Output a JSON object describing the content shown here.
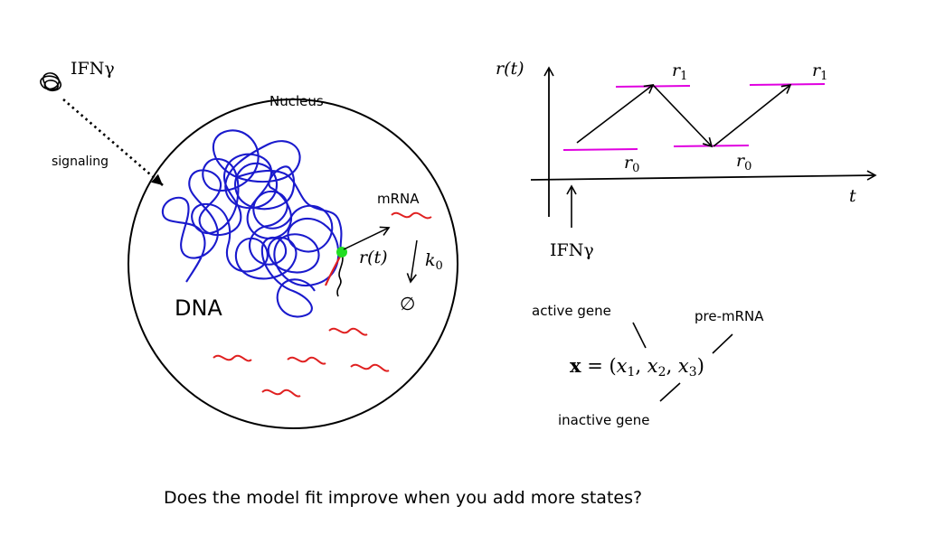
{
  "labels": {
    "ifn_left": "IFNγ",
    "signaling": "signaling",
    "nucleus": "Nucleus",
    "mrna": "mRNA",
    "rt_mid": "r(t)",
    "k0": "k",
    "k0_sub": "0",
    "empty_set": "∅",
    "dna": "DNA",
    "plot_ylabel": "r(t)",
    "plot_xlabel": "t",
    "r1": "r",
    "r1_sub": "1",
    "r0": "r",
    "r0_sub": "0",
    "ifn_bottom": "IFNγ",
    "active_gene": "active gene",
    "pre_mrna": "pre-mRNA",
    "inactive_gene": "inactive gene",
    "state_vector": {
      "bold_x": "x",
      "equals": " = (",
      "x": "x",
      "s1": "1",
      "s2": "2",
      "s3": "3",
      "comma": ", ",
      "close": ")"
    }
  },
  "question": "Does the model fit improve when you add more states?",
  "colors": {
    "dna": "#1a1acd",
    "mrna": "#e02020",
    "marker": "#22dd22",
    "level": "#e000e0",
    "ink": "#000000"
  }
}
